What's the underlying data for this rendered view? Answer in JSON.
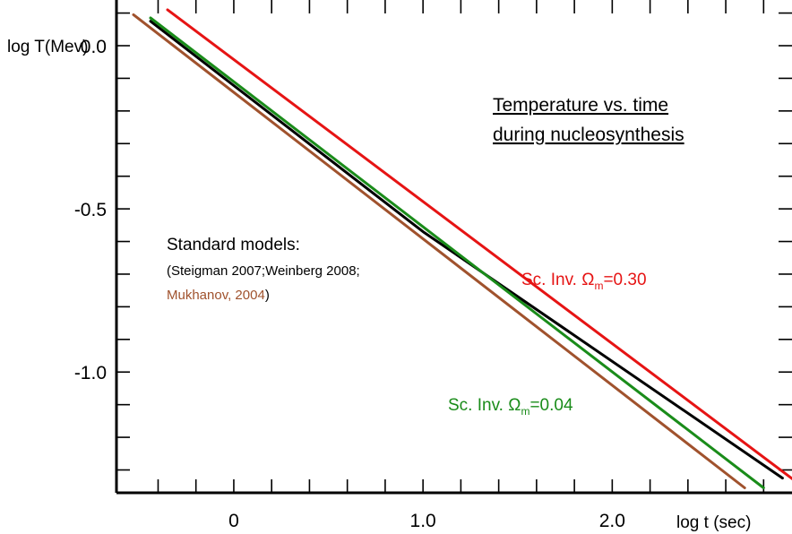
{
  "chart_data": {
    "type": "line",
    "title_lines": [
      "Temperature  vs. time",
      "during  nucleosynthesis"
    ],
    "xlabel": "log  t (sec)",
    "ylabel": "log T(Mev)",
    "x_tick_labels": [
      {
        "value": 0,
        "label": "0"
      },
      {
        "value": 1,
        "label": "1.0"
      },
      {
        "value": 2,
        "label": "2.0"
      }
    ],
    "y_tick_labels": [
      {
        "value": 0,
        "label": "0.0"
      },
      {
        "value": -0.5,
        "label": "-0.5"
      },
      {
        "value": -1,
        "label": "-1.0"
      }
    ],
    "x_minor_ticks": [
      -0.4,
      -0.2,
      0,
      0.2,
      0.4,
      0.6,
      0.8,
      1.0,
      1.2,
      1.4,
      1.6,
      1.8,
      2.0,
      2.2,
      2.4,
      2.6,
      2.8
    ],
    "y_minor_ticks": [
      0.1,
      0.0,
      -0.1,
      -0.2,
      -0.3,
      -0.4,
      -0.5,
      -0.6,
      -0.7,
      -0.8,
      -0.9,
      -1.0,
      -1.1,
      -1.2,
      -1.3
    ],
    "xlim": [
      -0.62,
      2.95
    ],
    "ylim": [
      -1.37,
      0.14
    ],
    "grid": false,
    "legend": "none",
    "series": [
      {
        "color": "#000000",
        "x": [
          -0.44,
          1.0,
          2.9
        ],
        "y": [
          0.075,
          -0.57,
          -1.325
        ]
      },
      {
        "color": "#1a8c1a",
        "x": [
          -0.44,
          2.8
        ],
        "y": [
          0.085,
          -1.355
        ]
      },
      {
        "color": "#a0522d",
        "x": [
          -0.53,
          2.7
        ],
        "y": [
          0.095,
          -1.355
        ]
      },
      {
        "color": "#e61414",
        "x": [
          -0.35,
          2.97
        ],
        "y": [
          0.11,
          -1.335
        ]
      }
    ],
    "annotations": {
      "standard_models": {
        "heading": "Standard  models:",
        "refs_line1": "(Steigman 2007;Weinberg 2008;",
        "refs_line2_part1": "Mukhanov, 2004",
        "refs_line2_part2": ")"
      },
      "red_label": {
        "prefix": "Sc. Inv. ",
        "symbol": "Ω",
        "sub": "m",
        "suffix": "=0.30",
        "color": "#e61414"
      },
      "green_label": {
        "prefix": "Sc. Inv. ",
        "symbol": "Ω",
        "sub": "m",
        "suffix": "=0.04",
        "color": "#1a8c1a"
      }
    },
    "colors": {
      "black": "#000000",
      "green": "#1a8c1a",
      "brown": "#a0522d",
      "red": "#e61414"
    }
  }
}
